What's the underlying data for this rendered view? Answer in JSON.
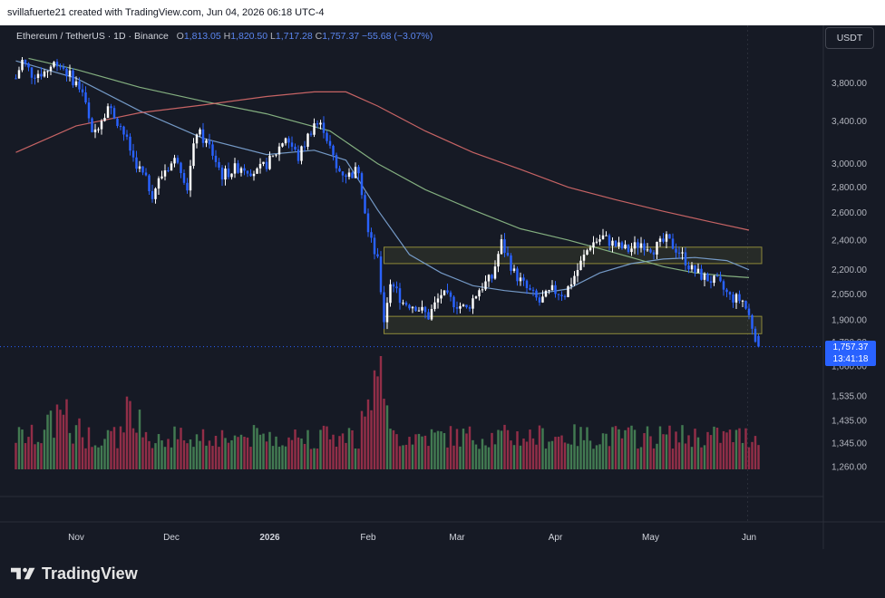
{
  "header": {
    "attribution": "svillafuerte21 created with TradingView.com, Jun 04, 2026 06:18 UTC-4"
  },
  "legend": {
    "symbol": "Ethereum / TetherUS · 1D · Binance",
    "open_label": "O",
    "open": "1,813.05",
    "high_label": "H",
    "high": "1,820.50",
    "low_label": "L",
    "low": "1,717.28",
    "close_label": "C",
    "close": "1,757.37",
    "change": "−55.68 (−3.07%)"
  },
  "currency_button": "USDT",
  "price_badge": {
    "price": "1,757.37",
    "countdown": "13:41:18"
  },
  "logo": "TradingView",
  "colors": {
    "background": "#161a25",
    "up": "#ffffff",
    "down": "#2962ff",
    "volume_up": "#4a8c5a",
    "volume_down": "#a8334f",
    "ma_fast": "#7ea7d8",
    "ma_mid": "#8fbf8a",
    "ma_slow": "#d96b6b",
    "zone": "#8f8a3a"
  },
  "chart_data": {
    "type": "candlestick",
    "pair": "ETH/USDT",
    "interval": "1D",
    "exchange": "Binance",
    "y_scale": "log",
    "ylim": [
      1600,
      4150
    ],
    "y_ticks": [
      3800,
      3400,
      3000,
      2800,
      2600,
      2400,
      2200,
      2050,
      1900,
      1780,
      1660
    ],
    "y_tick_labels": [
      "3,800.00",
      "3,400.00",
      "3,000.00",
      "2,800.00",
      "2,600.00",
      "2,400.00",
      "2,200.00",
      "2,050.00",
      "1,900.00",
      "1,780.00",
      "1,660.00"
    ],
    "volume_axis_ticks": [
      "1,535.00",
      "1,435.00",
      "1,345.00",
      "1,260.00"
    ],
    "x_ticks": [
      {
        "label": "Nov",
        "day": 0
      },
      {
        "label": "Dec",
        "day": 30
      },
      {
        "label": "2026",
        "day": 61
      },
      {
        "label": "Feb",
        "day": 92
      },
      {
        "label": "Mar",
        "day": 120
      },
      {
        "label": "Apr",
        "day": 151
      },
      {
        "label": "May",
        "day": 181
      },
      {
        "label": "Jun",
        "day": 212
      }
    ],
    "first_candle_day": -19,
    "last_candle_day": 215,
    "key_points": [
      {
        "day": -19,
        "close": 3850
      },
      {
        "day": -17,
        "close": 4050
      },
      {
        "day": -14,
        "close": 3900
      },
      {
        "day": -10,
        "close": 3920
      },
      {
        "day": -6,
        "close": 4050
      },
      {
        "day": -2,
        "close": 3880
      },
      {
        "day": 2,
        "close": 3700
      },
      {
        "day": 5,
        "close": 3250
      },
      {
        "day": 10,
        "close": 3550
      },
      {
        "day": 14,
        "close": 3350
      },
      {
        "day": 18,
        "close": 3050
      },
      {
        "day": 24,
        "close": 2750
      },
      {
        "day": 28,
        "close": 2950
      },
      {
        "day": 32,
        "close": 3050
      },
      {
        "day": 35,
        "close": 2800
      },
      {
        "day": 38,
        "close": 3300
      },
      {
        "day": 42,
        "close": 3150
      },
      {
        "day": 46,
        "close": 2900
      },
      {
        "day": 52,
        "close": 2980
      },
      {
        "day": 57,
        "close": 2920
      },
      {
        "day": 62,
        "close": 3050
      },
      {
        "day": 66,
        "close": 3250
      },
      {
        "day": 70,
        "close": 3050
      },
      {
        "day": 75,
        "close": 3380
      },
      {
        "day": 78,
        "close": 3330
      },
      {
        "day": 82,
        "close": 2950
      },
      {
        "day": 86,
        "close": 2900
      },
      {
        "day": 89,
        "close": 2950
      },
      {
        "day": 92,
        "close": 2450
      },
      {
        "day": 95,
        "close": 2250
      },
      {
        "day": 97,
        "close": 1900
      },
      {
        "day": 99,
        "close": 2120
      },
      {
        "day": 103,
        "close": 2000
      },
      {
        "day": 107,
        "close": 1980
      },
      {
        "day": 111,
        "close": 1920
      },
      {
        "day": 115,
        "close": 2050
      },
      {
        "day": 119,
        "close": 2000
      },
      {
        "day": 123,
        "close": 1960
      },
      {
        "day": 127,
        "close": 2080
      },
      {
        "day": 131,
        "close": 2150
      },
      {
        "day": 134,
        "close": 2380
      },
      {
        "day": 138,
        "close": 2180
      },
      {
        "day": 142,
        "close": 2080
      },
      {
        "day": 146,
        "close": 2000
      },
      {
        "day": 150,
        "close": 2070
      },
      {
        "day": 154,
        "close": 2050
      },
      {
        "day": 158,
        "close": 2200
      },
      {
        "day": 162,
        "close": 2370
      },
      {
        "day": 166,
        "close": 2420
      },
      {
        "day": 170,
        "close": 2360
      },
      {
        "day": 174,
        "close": 2330
      },
      {
        "day": 178,
        "close": 2380
      },
      {
        "day": 182,
        "close": 2340
      },
      {
        "day": 186,
        "close": 2400
      },
      {
        "day": 190,
        "close": 2320
      },
      {
        "day": 194,
        "close": 2200
      },
      {
        "day": 198,
        "close": 2150
      },
      {
        "day": 202,
        "close": 2120
      },
      {
        "day": 206,
        "close": 2030
      },
      {
        "day": 210,
        "close": 2010
      },
      {
        "day": 212,
        "close": 1920
      },
      {
        "day": 214,
        "close": 1813
      },
      {
        "day": 215,
        "close": 1757.37
      }
    ],
    "moving_averages": [
      {
        "period": "fast",
        "color": "#7ea7d8",
        "points": [
          [
            -19,
            4050
          ],
          [
            0,
            3850
          ],
          [
            20,
            3500
          ],
          [
            40,
            3230
          ],
          [
            60,
            3080
          ],
          [
            75,
            3120
          ],
          [
            85,
            3030
          ],
          [
            95,
            2620
          ],
          [
            105,
            2300
          ],
          [
            115,
            2180
          ],
          [
            125,
            2100
          ],
          [
            135,
            2070
          ],
          [
            145,
            2050
          ],
          [
            155,
            2080
          ],
          [
            165,
            2180
          ],
          [
            175,
            2240
          ],
          [
            185,
            2270
          ],
          [
            195,
            2280
          ],
          [
            205,
            2260
          ],
          [
            212,
            2200
          ]
        ]
      },
      {
        "period": "mid",
        "color": "#8fbf8a",
        "points": [
          [
            -15,
            4080
          ],
          [
            0,
            3950
          ],
          [
            20,
            3750
          ],
          [
            40,
            3600
          ],
          [
            60,
            3470
          ],
          [
            80,
            3300
          ],
          [
            95,
            3000
          ],
          [
            110,
            2780
          ],
          [
            125,
            2620
          ],
          [
            140,
            2480
          ],
          [
            155,
            2400
          ],
          [
            165,
            2340
          ],
          [
            175,
            2280
          ],
          [
            185,
            2220
          ],
          [
            195,
            2180
          ],
          [
            205,
            2160
          ],
          [
            212,
            2150
          ]
        ]
      },
      {
        "period": "slow",
        "color": "#d96b6b",
        "points": [
          [
            -19,
            3100
          ],
          [
            0,
            3350
          ],
          [
            20,
            3480
          ],
          [
            40,
            3560
          ],
          [
            60,
            3650
          ],
          [
            75,
            3700
          ],
          [
            85,
            3700
          ],
          [
            95,
            3550
          ],
          [
            110,
            3300
          ],
          [
            125,
            3100
          ],
          [
            140,
            2950
          ],
          [
            155,
            2800
          ],
          [
            170,
            2700
          ],
          [
            185,
            2610
          ],
          [
            200,
            2530
          ],
          [
            212,
            2470
          ]
        ]
      }
    ],
    "zones": [
      {
        "top": 2350,
        "bottom": 2240,
        "start_day": 97,
        "end_day": 216
      },
      {
        "top": 1920,
        "bottom": 1825,
        "start_day": 97,
        "end_day": 216
      }
    ],
    "last_price": 1757.37
  }
}
